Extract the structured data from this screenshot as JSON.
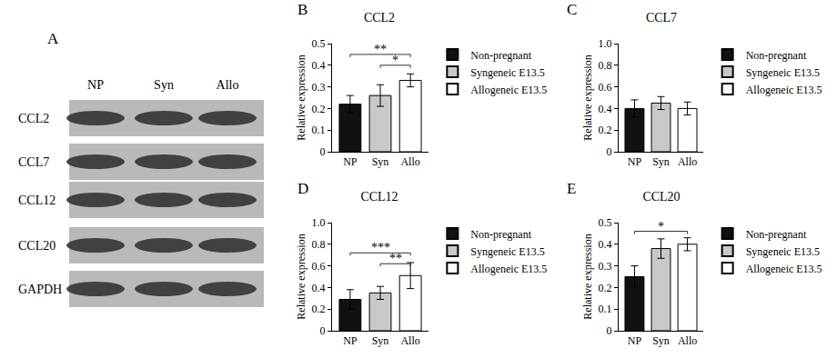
{
  "blot": {
    "label": "A",
    "lanes": [
      "NP",
      "Syn",
      "Allo"
    ],
    "rows": [
      "CCL2",
      "CCL7",
      "CCL12",
      "CCL20",
      "GAPDH"
    ]
  },
  "chart_data": [
    {
      "label": "B",
      "type": "bar",
      "title": "CCL2",
      "y_label": "Relative expression",
      "categories": [
        "NP",
        "Syn",
        "Allo"
      ],
      "series": [
        {
          "name": "Non-pregnant",
          "color": "#111111",
          "values": [
            0.22,
            null,
            null
          ],
          "errors": [
            0.04,
            null,
            null
          ]
        },
        {
          "name": "Syngeneic E13.5",
          "color": "#c8c8c8",
          "values": [
            null,
            0.26,
            null
          ],
          "errors": [
            null,
            0.05,
            null
          ]
        },
        {
          "name": "Allogeneic E13.5",
          "color": "#ffffff",
          "values": [
            null,
            null,
            0.33
          ],
          "errors": [
            null,
            null,
            0.03
          ]
        }
      ],
      "ylim": [
        0,
        0.5
      ],
      "yticks": [
        0,
        0.1,
        0.2,
        0.3,
        0.4,
        0.5
      ],
      "grid": false,
      "legend": "right",
      "annotations": [
        {
          "text": "**",
          "from": "NP",
          "to": "Allo",
          "y": 0.45
        },
        {
          "text": "*",
          "from": "Syn",
          "to": "Allo",
          "y": 0.4
        }
      ]
    },
    {
      "label": "C",
      "type": "bar",
      "title": "CCL7",
      "y_label": "Relative expression",
      "categories": [
        "NP",
        "Syn",
        "Allo"
      ],
      "series": [
        {
          "name": "Non-pregnant",
          "color": "#111111",
          "values": [
            0.4,
            null,
            null
          ],
          "errors": [
            0.08,
            null,
            null
          ]
        },
        {
          "name": "Syngeneic E13.5",
          "color": "#c8c8c8",
          "values": [
            null,
            0.45,
            null
          ],
          "errors": [
            null,
            0.06,
            null
          ]
        },
        {
          "name": "Allogeneic E13.5",
          "color": "#ffffff",
          "values": [
            null,
            null,
            0.4
          ],
          "errors": [
            null,
            null,
            0.06
          ]
        }
      ],
      "ylim": [
        0,
        1
      ],
      "yticks": [
        0,
        0.2,
        0.4,
        0.6,
        0.8,
        {
          "value": 1,
          "label": "1.0"
        }
      ],
      "grid": false,
      "legend": "right",
      "annotations": []
    },
    {
      "label": "D",
      "type": "bar",
      "title": "CCL12",
      "y_label": "Relative expression",
      "categories": [
        "NP",
        "Syn",
        "Allo"
      ],
      "series": [
        {
          "name": "Non-pregnant",
          "color": "#111111",
          "values": [
            0.29,
            null,
            null
          ],
          "errors": [
            0.09,
            null,
            null
          ]
        },
        {
          "name": "Syngeneic E13.5",
          "color": "#c8c8c8",
          "values": [
            null,
            0.35,
            null
          ],
          "errors": [
            null,
            0.06,
            null
          ]
        },
        {
          "name": "Allogeneic E13.5",
          "color": "#ffffff",
          "values": [
            null,
            null,
            0.51
          ],
          "errors": [
            null,
            null,
            0.12
          ]
        }
      ],
      "ylim": [
        0,
        1
      ],
      "yticks": [
        0,
        0.2,
        0.4,
        0.6,
        0.8,
        {
          "value": 1,
          "label": "1.0"
        }
      ],
      "grid": false,
      "legend": "right",
      "annotations": [
        {
          "text": "***",
          "from": "NP",
          "to": "Allo",
          "y": 0.72
        },
        {
          "text": "**",
          "from": "Syn",
          "to": "Allo",
          "y": 0.62
        }
      ]
    },
    {
      "label": "E",
      "type": "bar",
      "title": "CCL20",
      "y_label": "Relative expression",
      "categories": [
        "NP",
        "Syn",
        "Allo"
      ],
      "series": [
        {
          "name": "Non-pregnant",
          "color": "#111111",
          "values": [
            0.25,
            null,
            null
          ],
          "errors": [
            0.05,
            null,
            null
          ]
        },
        {
          "name": "Syngeneic E13.5",
          "color": "#c8c8c8",
          "values": [
            null,
            0.38,
            null
          ],
          "errors": [
            null,
            0.045,
            null
          ]
        },
        {
          "name": "Allogeneic E13.5",
          "color": "#ffffff",
          "values": [
            null,
            null,
            0.4
          ],
          "errors": [
            null,
            null,
            0.03
          ]
        }
      ],
      "ylim": [
        0,
        0.5
      ],
      "yticks": [
        0,
        0.1,
        0.2,
        0.3,
        0.4,
        0.5
      ],
      "grid": false,
      "legend": "right",
      "annotations": [
        {
          "text": "*",
          "from": "NP",
          "to": "Allo",
          "y": 0.46
        }
      ]
    }
  ]
}
